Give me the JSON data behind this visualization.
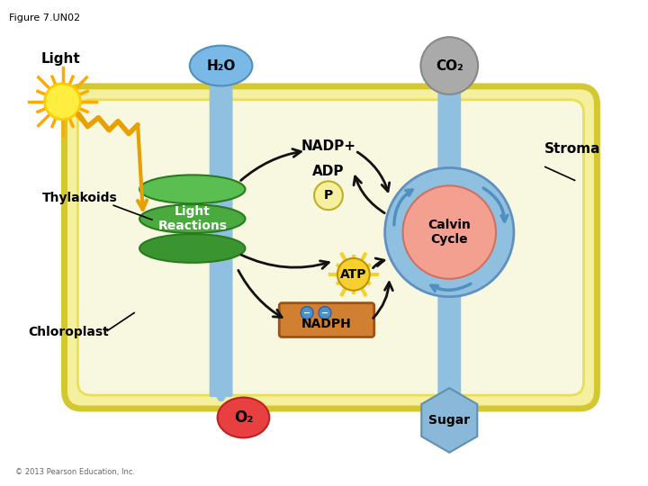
{
  "title": "Figure 7.UN02",
  "background": "#ffffff",
  "stroma_label": "Stroma",
  "thylakoids_label": "Thylakoids",
  "chloroplast_label": "Chloroplast",
  "light_label": "Light",
  "h2o_label": "H₂O",
  "co2_label": "CO₂",
  "o2_label": "O₂",
  "sugar_label": "Sugar",
  "nadp_label": "NADP+",
  "adp_label": "ADP",
  "p_label": "P",
  "atp_label": "ATP",
  "nadph_label": "NADPH",
  "light_reactions_label": "Light\nReactions",
  "calvin_cycle_label": "Calvin\nCycle",
  "copyright": "© 2013 Pearson Education, Inc.",
  "chloroplast_outer_fill": "#f5f0a0",
  "chloroplast_outer_edge": "#d4c830",
  "chloroplast_inner_fill": "#f8f8e0",
  "chloroplast_inner_edge": "#e8e050",
  "h2o_fill": "#7ab8e8",
  "h2o_edge": "#5090b8",
  "co2_fill": "#aaaaaa",
  "co2_edge": "#888888",
  "o2_fill": "#e84040",
  "o2_edge": "#c02020",
  "sugar_fill": "#8ab8d8",
  "sugar_edge": "#6090b0",
  "lr_disc_fills": [
    "#5abf50",
    "#4aaa40",
    "#3a9530"
  ],
  "lr_disc_edge": "#2a7a20",
  "cc_outer_fill": "#90c0e0",
  "cc_outer_edge": "#6090c0",
  "cc_inner_fill": "#f4a090",
  "cc_inner_edge": "#d07060",
  "cc_pipe_fill": "#90c0e0",
  "atp_fill": "#f5d030",
  "atp_edge": "#c09000",
  "p_fill": "#f5f0a0",
  "p_edge": "#c0b020",
  "nadph_fill": "#d08030",
  "nadph_edge": "#a05010",
  "nadph_dot_fill": "#5090c8",
  "sun_inner": "#ffee40",
  "sun_outer": "#ffcc00",
  "sun_ray": "#ffaa00",
  "zigzag_color": "#e8a000",
  "blue_arrow": "#90c0e0",
  "black_arrow": "#111111"
}
